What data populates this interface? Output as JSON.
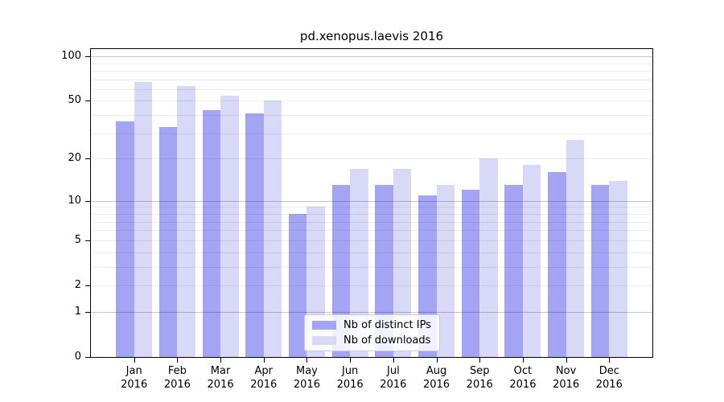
{
  "figure": {
    "title": "pd.xenopus.laevis 2016"
  },
  "chart_data": {
    "type": "bar",
    "title": "pd.xenopus.laevis 2016",
    "categories": [
      "Jan",
      "Feb",
      "Mar",
      "Apr",
      "May",
      "Jun",
      "Jul",
      "Aug",
      "Sep",
      "Oct",
      "Nov",
      "Dec"
    ],
    "xtick_year_line": "2016",
    "series": [
      {
        "name": "Nb of distinct IPs",
        "color": "#a4a4f4",
        "values": [
          36,
          33,
          43,
          41,
          8,
          13,
          13,
          11,
          12,
          13,
          16,
          13
        ]
      },
      {
        "name": "Nb of downloads",
        "color": "#d8d8f7",
        "values": [
          67,
          63,
          54,
          50,
          9,
          17,
          17,
          13,
          20,
          18,
          27,
          14
        ]
      }
    ],
    "yscale": "log1p",
    "ylim": [
      0,
      112
    ],
    "yticks": [
      0,
      1,
      2,
      5,
      10,
      20,
      50,
      100
    ],
    "major_gridlines": [
      1,
      10,
      100
    ],
    "minor_gridlines": [
      2,
      3,
      4,
      6,
      7,
      8,
      9,
      20,
      30,
      40,
      60,
      70,
      80,
      90
    ],
    "minor_gridlines_labeled": [
      5,
      50
    ],
    "grid": "horizontal",
    "legend_position": "lower-center",
    "colors": {
      "grid_major": "#c7c7c7",
      "grid_minor": "#ededed",
      "axis": "#000000",
      "text": "#000000",
      "legend_border": "#cccccc",
      "legend_bg": "#ffffff"
    }
  }
}
